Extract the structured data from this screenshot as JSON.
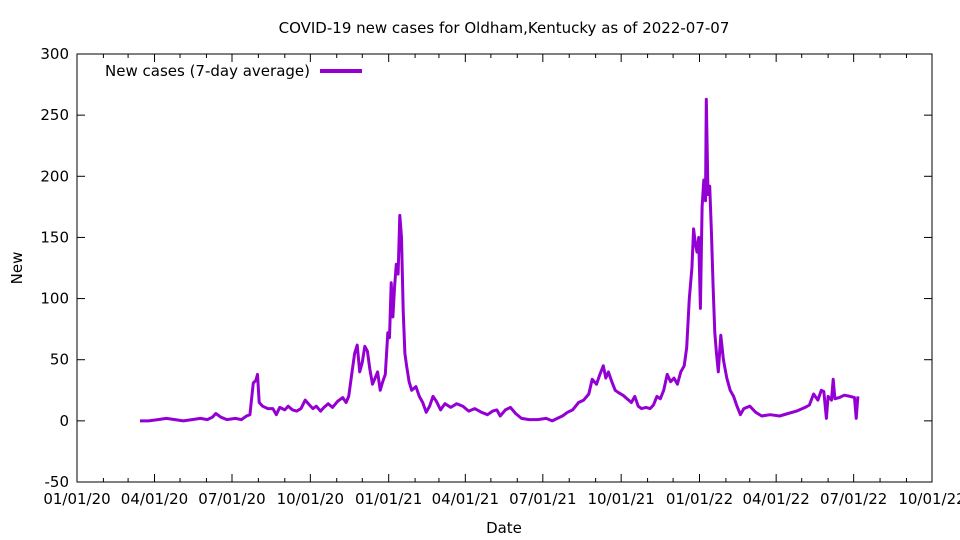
{
  "chart_data": {
    "type": "line",
    "title": "COVID-19 new cases for Oldham,Kentucky as of 2022-07-07",
    "xlabel": "Date",
    "ylabel": "New",
    "xlim": [
      "2020-01-01",
      "2022-10-01"
    ],
    "ylim": [
      -50,
      300
    ],
    "x_tick_labels": [
      "01/01/20",
      "04/01/20",
      "07/01/20",
      "10/01/20",
      "01/01/21",
      "04/01/21",
      "07/01/21",
      "10/01/21",
      "01/01/22",
      "04/01/22",
      "07/01/22",
      "10/01/22"
    ],
    "y_tick_labels": [
      "-50",
      "0",
      "50",
      "100",
      "150",
      "200",
      "250",
      "300"
    ],
    "grid": false,
    "legend": "top-left",
    "series": [
      {
        "name": "New cases (7-day average)",
        "color": "#9400d3",
        "points": [
          [
            "2020-03-15",
            0
          ],
          [
            "2020-03-25",
            0
          ],
          [
            "2020-04-05",
            1
          ],
          [
            "2020-04-15",
            2
          ],
          [
            "2020-04-25",
            1
          ],
          [
            "2020-05-05",
            0
          ],
          [
            "2020-05-15",
            1
          ],
          [
            "2020-05-25",
            2
          ],
          [
            "2020-06-02",
            1
          ],
          [
            "2020-06-08",
            3
          ],
          [
            "2020-06-12",
            6
          ],
          [
            "2020-06-18",
            3
          ],
          [
            "2020-06-25",
            1
          ],
          [
            "2020-07-05",
            2
          ],
          [
            "2020-07-12",
            1
          ],
          [
            "2020-07-18",
            4
          ],
          [
            "2020-07-22",
            5
          ],
          [
            "2020-07-26",
            31
          ],
          [
            "2020-07-29",
            33
          ],
          [
            "2020-07-31",
            38
          ],
          [
            "2020-08-02",
            15
          ],
          [
            "2020-08-06",
            12
          ],
          [
            "2020-08-12",
            10
          ],
          [
            "2020-08-18",
            10
          ],
          [
            "2020-08-22",
            5
          ],
          [
            "2020-08-26",
            11
          ],
          [
            "2020-09-01",
            9
          ],
          [
            "2020-09-05",
            12
          ],
          [
            "2020-09-10",
            9
          ],
          [
            "2020-09-15",
            8
          ],
          [
            "2020-09-20",
            10
          ],
          [
            "2020-09-25",
            17
          ],
          [
            "2020-09-30",
            13
          ],
          [
            "2020-10-04",
            10
          ],
          [
            "2020-10-08",
            12
          ],
          [
            "2020-10-13",
            8
          ],
          [
            "2020-10-17",
            11
          ],
          [
            "2020-10-22",
            14
          ],
          [
            "2020-10-27",
            11
          ],
          [
            "2020-11-02",
            16
          ],
          [
            "2020-11-08",
            19
          ],
          [
            "2020-11-12",
            15
          ],
          [
            "2020-11-15",
            20
          ],
          [
            "2020-11-18",
            35
          ],
          [
            "2020-11-22",
            55
          ],
          [
            "2020-11-25",
            62
          ],
          [
            "2020-11-28",
            40
          ],
          [
            "2020-12-01",
            48
          ],
          [
            "2020-12-04",
            61
          ],
          [
            "2020-12-07",
            57
          ],
          [
            "2020-12-10",
            42
          ],
          [
            "2020-12-13",
            30
          ],
          [
            "2020-12-16",
            35
          ],
          [
            "2020-12-19",
            40
          ],
          [
            "2020-12-22",
            25
          ],
          [
            "2020-12-25",
            32
          ],
          [
            "2020-12-28",
            38
          ],
          [
            "2020-12-31",
            72
          ],
          [
            "2021-01-02",
            68
          ],
          [
            "2021-01-04",
            113
          ],
          [
            "2021-01-06",
            85
          ],
          [
            "2021-01-08",
            110
          ],
          [
            "2021-01-10",
            128
          ],
          [
            "2021-01-12",
            120
          ],
          [
            "2021-01-14",
            168
          ],
          [
            "2021-01-16",
            150
          ],
          [
            "2021-01-18",
            90
          ],
          [
            "2021-01-20",
            55
          ],
          [
            "2021-01-22",
            45
          ],
          [
            "2021-01-25",
            32
          ],
          [
            "2021-01-28",
            25
          ],
          [
            "2021-02-02",
            28
          ],
          [
            "2021-02-06",
            20
          ],
          [
            "2021-02-10",
            15
          ],
          [
            "2021-02-14",
            7
          ],
          [
            "2021-02-18",
            12
          ],
          [
            "2021-02-22",
            20
          ],
          [
            "2021-02-26",
            16
          ],
          [
            "2021-03-03",
            9
          ],
          [
            "2021-03-08",
            14
          ],
          [
            "2021-03-15",
            11
          ],
          [
            "2021-03-22",
            14
          ],
          [
            "2021-03-29",
            12
          ],
          [
            "2021-04-05",
            8
          ],
          [
            "2021-04-12",
            10
          ],
          [
            "2021-04-20",
            7
          ],
          [
            "2021-04-27",
            5
          ],
          [
            "2021-05-03",
            8
          ],
          [
            "2021-05-08",
            9
          ],
          [
            "2021-05-12",
            4
          ],
          [
            "2021-05-18",
            9
          ],
          [
            "2021-05-24",
            11
          ],
          [
            "2021-05-30",
            6
          ],
          [
            "2021-06-06",
            2
          ],
          [
            "2021-06-15",
            1
          ],
          [
            "2021-06-25",
            1
          ],
          [
            "2021-07-05",
            2
          ],
          [
            "2021-07-12",
            0
          ],
          [
            "2021-07-18",
            2
          ],
          [
            "2021-07-24",
            4
          ],
          [
            "2021-07-30",
            7
          ],
          [
            "2021-08-05",
            9
          ],
          [
            "2021-08-12",
            15
          ],
          [
            "2021-08-18",
            17
          ],
          [
            "2021-08-24",
            22
          ],
          [
            "2021-08-28",
            34
          ],
          [
            "2021-09-02",
            30
          ],
          [
            "2021-09-06",
            38
          ],
          [
            "2021-09-10",
            45
          ],
          [
            "2021-09-13",
            35
          ],
          [
            "2021-09-16",
            40
          ],
          [
            "2021-09-20",
            32
          ],
          [
            "2021-09-24",
            25
          ],
          [
            "2021-09-28",
            23
          ],
          [
            "2021-10-03",
            21
          ],
          [
            "2021-10-08",
            18
          ],
          [
            "2021-10-13",
            15
          ],
          [
            "2021-10-17",
            20
          ],
          [
            "2021-10-21",
            12
          ],
          [
            "2021-10-25",
            10
          ],
          [
            "2021-10-30",
            11
          ],
          [
            "2021-11-04",
            10
          ],
          [
            "2021-11-08",
            13
          ],
          [
            "2021-11-12",
            20
          ],
          [
            "2021-11-16",
            18
          ],
          [
            "2021-11-20",
            25
          ],
          [
            "2021-11-24",
            38
          ],
          [
            "2021-11-28",
            32
          ],
          [
            "2021-12-02",
            35
          ],
          [
            "2021-12-06",
            30
          ],
          [
            "2021-12-10",
            40
          ],
          [
            "2021-12-14",
            45
          ],
          [
            "2021-12-17",
            60
          ],
          [
            "2021-12-20",
            100
          ],
          [
            "2021-12-23",
            125
          ],
          [
            "2021-12-25",
            157
          ],
          [
            "2021-12-27",
            145
          ],
          [
            "2021-12-29",
            138
          ],
          [
            "2021-12-31",
            150
          ],
          [
            "2022-01-02",
            92
          ],
          [
            "2022-01-04",
            175
          ],
          [
            "2022-01-06",
            197
          ],
          [
            "2022-01-08",
            180
          ],
          [
            "2022-01-09",
            263
          ],
          [
            "2022-01-11",
            185
          ],
          [
            "2022-01-13",
            192
          ],
          [
            "2022-01-15",
            155
          ],
          [
            "2022-01-17",
            110
          ],
          [
            "2022-01-19",
            72
          ],
          [
            "2022-01-21",
            55
          ],
          [
            "2022-01-23",
            40
          ],
          [
            "2022-01-26",
            70
          ],
          [
            "2022-01-29",
            50
          ],
          [
            "2022-02-02",
            35
          ],
          [
            "2022-02-06",
            25
          ],
          [
            "2022-02-10",
            20
          ],
          [
            "2022-02-14",
            12
          ],
          [
            "2022-02-18",
            5
          ],
          [
            "2022-02-22",
            10
          ],
          [
            "2022-03-01",
            12
          ],
          [
            "2022-03-08",
            7
          ],
          [
            "2022-03-15",
            4
          ],
          [
            "2022-03-25",
            5
          ],
          [
            "2022-04-05",
            4
          ],
          [
            "2022-04-15",
            6
          ],
          [
            "2022-04-25",
            8
          ],
          [
            "2022-05-05",
            11
          ],
          [
            "2022-05-10",
            13
          ],
          [
            "2022-05-15",
            22
          ],
          [
            "2022-05-20",
            17
          ],
          [
            "2022-05-24",
            25
          ],
          [
            "2022-05-27",
            24
          ],
          [
            "2022-05-30",
            2
          ],
          [
            "2022-06-01",
            20
          ],
          [
            "2022-06-05",
            17
          ],
          [
            "2022-06-07",
            34
          ],
          [
            "2022-06-09",
            18
          ],
          [
            "2022-06-14",
            19
          ],
          [
            "2022-06-20",
            21
          ],
          [
            "2022-06-27",
            20
          ],
          [
            "2022-07-02",
            19
          ],
          [
            "2022-07-04",
            2
          ],
          [
            "2022-07-06",
            20
          ]
        ]
      }
    ]
  }
}
